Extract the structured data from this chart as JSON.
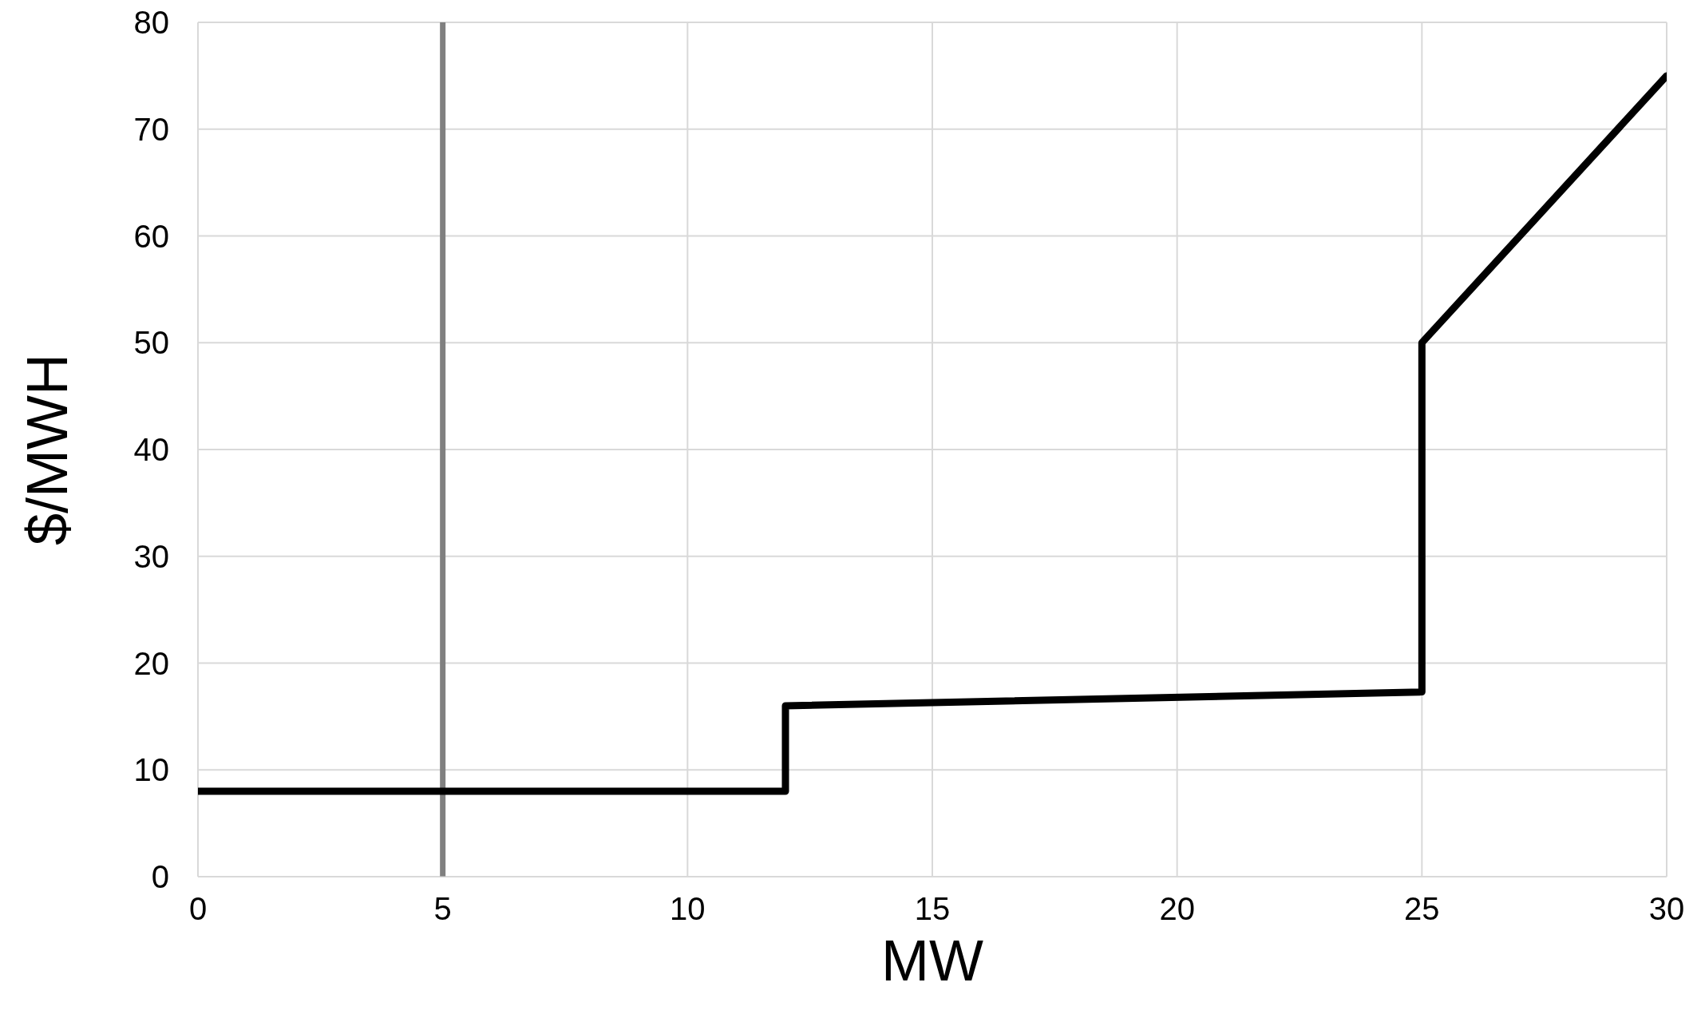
{
  "chart_data": {
    "type": "line",
    "xlabel": "MW",
    "ylabel": "$/MWH",
    "x": [
      0,
      12,
      12,
      25,
      25,
      30
    ],
    "series": [
      {
        "color": "#000000",
        "values": [
          8,
          8,
          16,
          17.3,
          50,
          75
        ]
      }
    ],
    "xlim": [
      0,
      30
    ],
    "xticks": [
      0,
      5,
      10,
      15,
      20,
      25,
      30
    ],
    "ylim": [
      0,
      80
    ],
    "yticks": [
      0,
      10,
      20,
      30,
      40,
      50,
      60,
      70,
      80
    ],
    "grid": true,
    "marker": "none",
    "line_style": "solid",
    "legend": false,
    "ref_lines": [
      {
        "axis": "x",
        "value": 5,
        "color": "#808080"
      }
    ]
  }
}
